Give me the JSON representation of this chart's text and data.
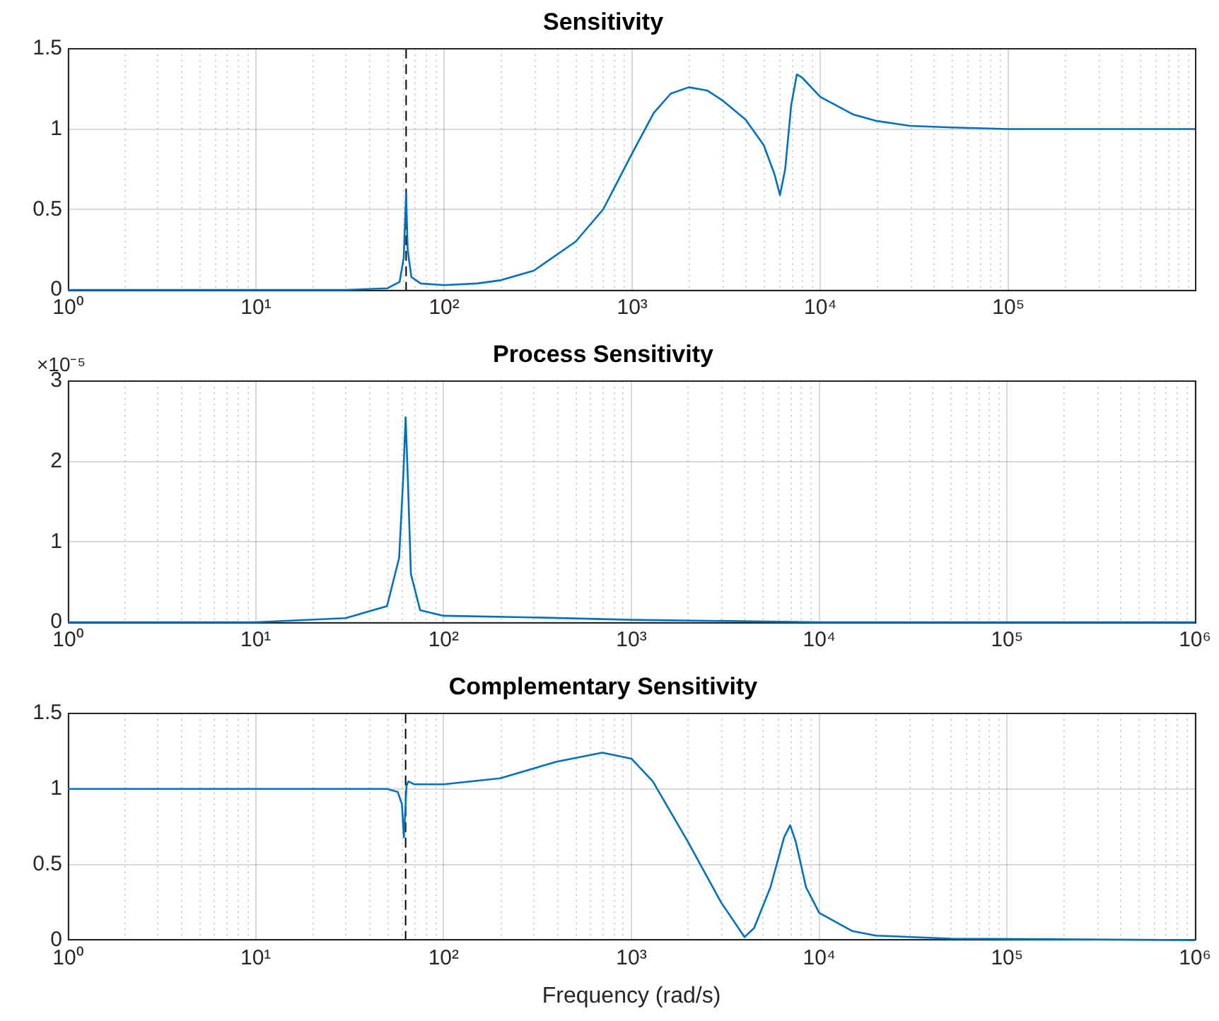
{
  "chart_data": [
    {
      "type": "line",
      "title": "Sensitivity",
      "log": "x",
      "grid": true,
      "xlim": [
        1,
        980000
      ],
      "ylim": [
        0,
        1.5
      ],
      "xticks": [
        {
          "value": 1,
          "label": "10⁰"
        },
        {
          "value": 10,
          "label": "10¹"
        },
        {
          "value": 100,
          "label": "10²"
        },
        {
          "value": 1000,
          "label": "10³"
        },
        {
          "value": 10000,
          "label": "10⁴"
        },
        {
          "value": 100000,
          "label": "10⁵"
        }
      ],
      "yticks": [
        0,
        0.5,
        1,
        1.5
      ],
      "ref_lines": [
        {
          "axis": "x",
          "value": 62.8,
          "label": null,
          "color": "#000000",
          "line_style": "dashed"
        }
      ],
      "series": [
        {
          "color": "#0072bd",
          "x": [
            1,
            10,
            30,
            50,
            58,
            61,
            62.8,
            64,
            67,
            75,
            100,
            150,
            200,
            300,
            500,
            700,
            1000,
            1300,
            1600,
            2000,
            2500,
            3000,
            4000,
            5000,
            5700,
            6100,
            6500,
            7000,
            7500,
            8000,
            10000,
            15000,
            20000,
            30000,
            50000,
            100000,
            980000
          ],
          "values": [
            0,
            0,
            0,
            0.01,
            0.05,
            0.2,
            0.6,
            0.25,
            0.08,
            0.04,
            0.03,
            0.04,
            0.06,
            0.12,
            0.3,
            0.5,
            0.85,
            1.1,
            1.22,
            1.26,
            1.24,
            1.18,
            1.06,
            0.9,
            0.72,
            0.59,
            0.75,
            1.15,
            1.34,
            1.32,
            1.2,
            1.09,
            1.05,
            1.02,
            1.01,
            1,
            1
          ]
        }
      ]
    },
    {
      "type": "line",
      "title": "Process Sensitivity",
      "log": "x",
      "grid": true,
      "xlim": [
        1,
        1000000
      ],
      "ylim": [
        0,
        3
      ],
      "annotations": [
        "×10⁻⁵"
      ],
      "xticks": [
        {
          "value": 1,
          "label": "10⁰"
        },
        {
          "value": 10,
          "label": "10¹"
        },
        {
          "value": 100,
          "label": "10²"
        },
        {
          "value": 1000,
          "label": "10³"
        },
        {
          "value": 10000,
          "label": "10⁴"
        },
        {
          "value": 100000,
          "label": "10⁵"
        },
        {
          "value": 1000000,
          "label": "10⁶"
        }
      ],
      "yticks": [
        0,
        1,
        2,
        3
      ],
      "series": [
        {
          "color": "#0072bd",
          "x": [
            1,
            10,
            30,
            50,
            58,
            61,
            62.8,
            64.5,
            67,
            75,
            100,
            300,
            1000,
            10000,
            1000000
          ],
          "values": [
            0,
            0,
            0.05,
            0.2,
            0.8,
            1.8,
            2.55,
            1.8,
            0.6,
            0.15,
            0.08,
            0.06,
            0.03,
            0,
            0
          ]
        }
      ]
    },
    {
      "type": "line",
      "title": "Complementary Sensitivity",
      "xlabel": "Frequency (rad/s)",
      "log": "x",
      "grid": true,
      "xlim": [
        1,
        1000000
      ],
      "ylim": [
        0,
        1.5
      ],
      "xticks": [
        {
          "value": 1,
          "label": "10⁰"
        },
        {
          "value": 10,
          "label": "10¹"
        },
        {
          "value": 100,
          "label": "10²"
        },
        {
          "value": 1000,
          "label": "10³"
        },
        {
          "value": 10000,
          "label": "10⁴"
        },
        {
          "value": 100000,
          "label": "10⁵"
        },
        {
          "value": 1000000,
          "label": "10⁶"
        }
      ],
      "yticks": [
        0,
        0.5,
        1,
        1.5
      ],
      "ref_lines": [
        {
          "axis": "x",
          "value": 62.8,
          "label": null,
          "color": "#000000",
          "line_style": "dashed"
        }
      ],
      "series": [
        {
          "color": "#0072bd",
          "x": [
            1,
            50,
            57,
            60,
            61.5,
            62.5,
            63.5,
            65,
            70,
            100,
            200,
            400,
            700,
            1000,
            1300,
            2000,
            3000,
            4000,
            4500,
            5500,
            6500,
            7000,
            7500,
            8500,
            10000,
            15000,
            20000,
            50000,
            1000000
          ],
          "values": [
            1,
            1,
            0.98,
            0.9,
            0.68,
            0.85,
            1.02,
            1.05,
            1.03,
            1.03,
            1.07,
            1.18,
            1.24,
            1.2,
            1.05,
            0.65,
            0.25,
            0.02,
            0.08,
            0.35,
            0.68,
            0.76,
            0.65,
            0.35,
            0.18,
            0.06,
            0.03,
            0.01,
            0
          ]
        }
      ]
    }
  ]
}
